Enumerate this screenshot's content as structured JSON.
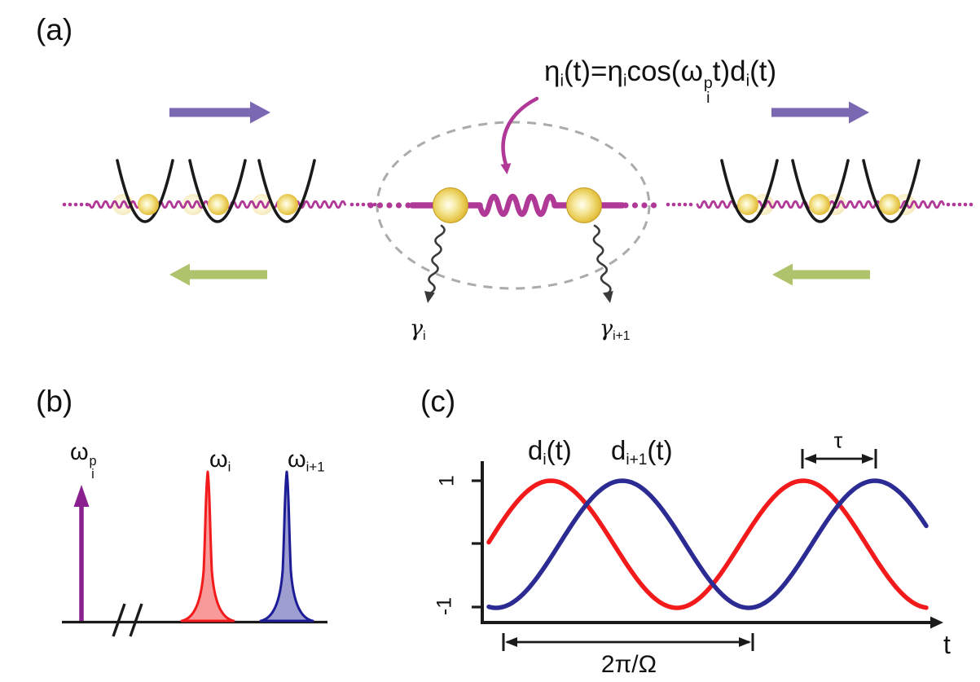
{
  "colors": {
    "magenta": "#B03896",
    "purple_arrow": "#7A68B2",
    "green_arrow": "#AEC36B",
    "gold_edge": "#BE9216",
    "gold_stroke": "#C39A1D",
    "black": "#1A1A1A",
    "gray_ellipse": "#ABABAB",
    "decay": "#3A3A3A",
    "pump_purple": "#8A1F8F",
    "red": "#F21A1A",
    "red_fill": "#F89A9A",
    "blue": "#1C1C96",
    "blue_fill": "#9E9ED0",
    "curve_red": "#F21A1A",
    "curve_blue": "#2B2B93",
    "axis": "#1A1A1A"
  },
  "labels": {
    "panel_a": "(a)",
    "panel_b": "(b)",
    "panel_c": "(c)",
    "formula": [
      {
        "t": "η"
      },
      {
        "t": "i",
        "m": "sub"
      },
      {
        "t": "(t)="
      },
      {
        "t": "η"
      },
      {
        "t": "i",
        "m": "sub"
      },
      {
        "t": "cos("
      },
      {
        "t": "ω"
      },
      {
        "m": "stk",
        "top": "p",
        "bot": "i"
      },
      {
        "t": "t)d"
      },
      {
        "t": "i",
        "m": "sub"
      },
      {
        "t": "(t)"
      }
    ],
    "gamma_i": [
      {
        "t": "γ",
        "m": "gam"
      },
      {
        "t": "i",
        "m": "sub"
      }
    ],
    "gamma_i_plus_1": [
      {
        "t": "γ",
        "m": "gam"
      },
      {
        "t": "i+1",
        "m": "sub"
      }
    ],
    "omega_pump": [
      {
        "t": "ω"
      },
      {
        "m": "stk",
        "top": "p",
        "bot": "i"
      }
    ],
    "omega_i": [
      {
        "t": "ω"
      },
      {
        "t": "i",
        "m": "sub"
      }
    ],
    "omega_i_plus_1": [
      {
        "t": "ω"
      },
      {
        "t": "i+1",
        "m": "sub"
      }
    ],
    "d_i": [
      {
        "t": "d"
      },
      {
        "t": "i",
        "m": "sub"
      },
      {
        "t": "(t)"
      }
    ],
    "d_i_plus_1": [
      {
        "t": "d"
      },
      {
        "t": "i+1",
        "m": "sub"
      },
      {
        "t": "(t)"
      }
    ],
    "tau": [
      {
        "t": "τ"
      }
    ],
    "period": [
      {
        "t": "2π/Ω"
      }
    ],
    "one": "1",
    "minus_one": "-1",
    "t_axis": "t"
  },
  "chart_data": [
    {
      "panel": "b",
      "type": "line",
      "description": "Schematic frequency spectrum: parametric pump tone far detuned (axis break) from two motional resonances",
      "axis_break": true,
      "features": [
        {
          "kind": "delta-arrow",
          "label": "ω_i^p",
          "color": "#8A1F8F",
          "position": "far left of axis, before break"
        },
        {
          "kind": "lorentzian-peak",
          "label": "ω_i",
          "outline": "#F21A1A",
          "fill": "#F89A9A",
          "position": "right of break"
        },
        {
          "kind": "lorentzian-peak",
          "label": "ω_i+1",
          "outline": "#1C1C96",
          "fill": "#9E9ED0",
          "position": "far right"
        }
      ]
    },
    {
      "panel": "c",
      "type": "line",
      "description": "Two unit-amplitude cosine drives with relative delay τ",
      "xlabel": "t",
      "ylim": [
        -1,
        1
      ],
      "yticks": [
        1,
        -1
      ],
      "x_span_turns": 1.735,
      "series": [
        {
          "name": "d_i(t)",
          "color": "#F21A1A",
          "waveform": "cosine",
          "amplitude": 1,
          "peak_at_turns": 0.245
        },
        {
          "name": "d_i+1(t)",
          "color": "#2B2B93",
          "waveform": "cosine",
          "amplitude": 1,
          "peak_at_turns": 0.529
        }
      ],
      "annotations": [
        {
          "label": "τ",
          "meaning": "delay between d_i and d_i+1 peaks",
          "span_turns": 0.284
        },
        {
          "label": "2π/Ω",
          "meaning": "one oscillation period",
          "span_turns": 1.0
        }
      ]
    }
  ]
}
